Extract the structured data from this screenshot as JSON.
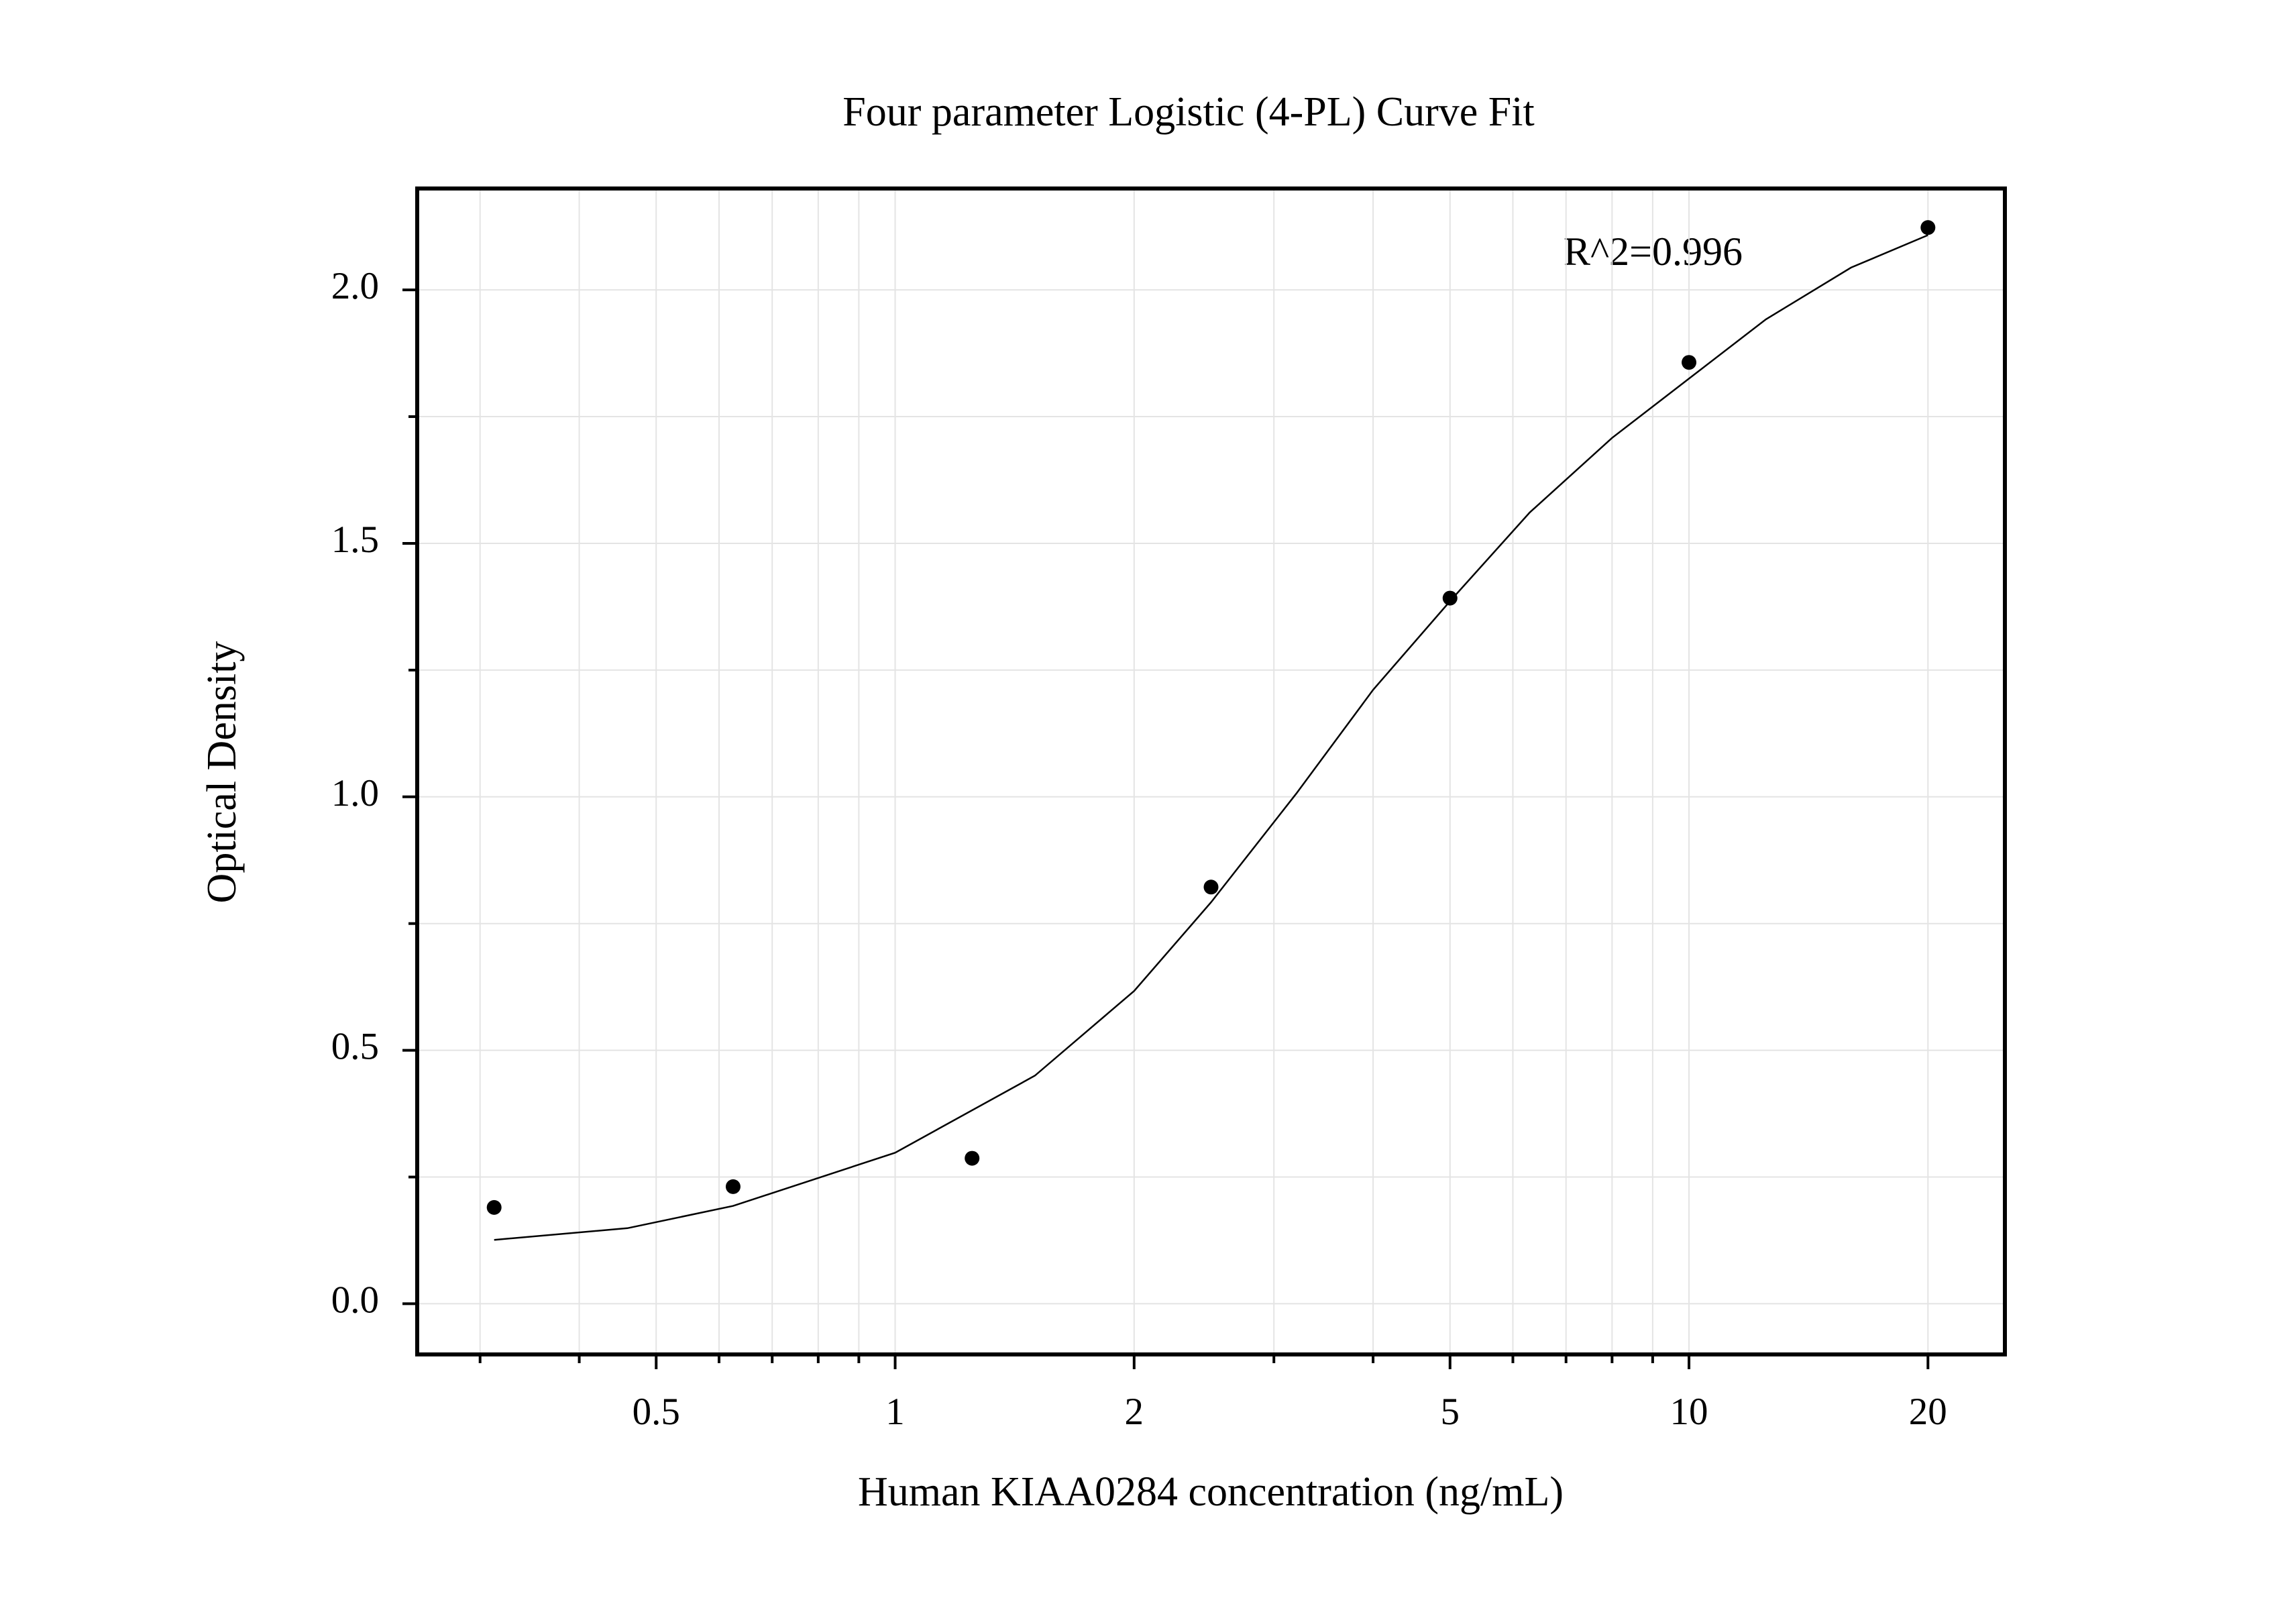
{
  "chart_data": {
    "type": "scatter",
    "title": "Four parameter Logistic (4-PL) Curve Fit",
    "x_label": "Human KIAA0284 concentration (ng/mL)",
    "y_label": "Optical Density",
    "annotation": "R^2=0.996",
    "log_x": true,
    "grid": true,
    "xlim": [
      0.25,
      25
    ],
    "ylim": [
      -0.1,
      2.2
    ],
    "xticks": [
      0.5,
      1,
      2,
      5,
      10,
      20
    ],
    "xminorticks": [
      0.3,
      0.4,
      0.6,
      0.7,
      0.8,
      0.9,
      3,
      4,
      6,
      7,
      8,
      9
    ],
    "yticks": [
      {
        "value": 0,
        "label": "0.0"
      },
      {
        "value": 0.5,
        "label": "0.5"
      },
      {
        "value": 1,
        "label": "1.0"
      },
      {
        "value": 1.5,
        "label": "1.5"
      },
      {
        "value": 2,
        "label": "2.0"
      }
    ],
    "yminorticks": [
      0.25,
      0.75,
      1.25,
      1.75
    ],
    "points": {
      "color": "#000000",
      "x": [
        0.3125,
        0.625,
        1.25,
        2.5,
        5,
        10,
        20
      ],
      "values": [
        0.19,
        0.231,
        0.287,
        0.822,
        1.392,
        1.857,
        2.123
      ]
    },
    "fit": {
      "color": "#000000",
      "x": [
        0.3125,
        0.46,
        0.625,
        1,
        1.5,
        2,
        2.5,
        3.2,
        4,
        5,
        6.3,
        8,
        10,
        12.5,
        16,
        20
      ],
      "values": [
        0.126,
        0.149,
        0.193,
        0.298,
        0.45,
        0.617,
        0.792,
        1.006,
        1.211,
        1.386,
        1.561,
        1.708,
        1.825,
        1.942,
        2.044,
        2.108
      ]
    }
  }
}
